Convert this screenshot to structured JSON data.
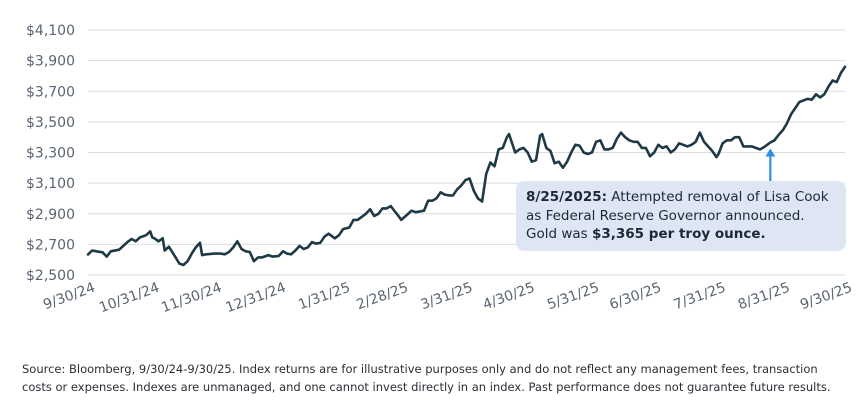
{
  "chart_data": {
    "type": "line",
    "y_axis": {
      "min": 2500,
      "max": 4100,
      "ticks": [
        2500,
        2700,
        2900,
        3100,
        3300,
        3500,
        3700,
        3900,
        4100
      ],
      "tick_labels": [
        "$2,500",
        "$2,700",
        "$2,900",
        "$3,100",
        "$3,300",
        "$3,500",
        "$3,700",
        "$3,900",
        "$4,100"
      ]
    },
    "x_axis": {
      "start": "2024-09-30",
      "end": "2025-09-30",
      "ticks": [
        "2024-09-30",
        "2024-10-31",
        "2024-11-30",
        "2024-12-31",
        "2025-01-31",
        "2025-02-28",
        "2025-03-31",
        "2025-04-30",
        "2025-05-31",
        "2025-06-30",
        "2025-07-31",
        "2025-08-31",
        "2025-09-30"
      ],
      "tick_labels": [
        "9/30/24",
        "10/31/24",
        "11/30/24",
        "12/31/24",
        "1/31/25",
        "2/28/25",
        "3/31/25",
        "4/30/25",
        "5/31/25",
        "6/30/25",
        "7/31/25",
        "8/31/25",
        "9/30/25"
      ]
    },
    "grid": true,
    "line_color": "#1f3a45",
    "series": [
      {
        "points": [
          [
            "2024-09-30",
            2634
          ],
          [
            "2024-10-02",
            2660
          ],
          [
            "2024-10-04",
            2655
          ],
          [
            "2024-10-07",
            2648
          ],
          [
            "2024-10-09",
            2620
          ],
          [
            "2024-10-11",
            2655
          ],
          [
            "2024-10-15",
            2665
          ],
          [
            "2024-10-17",
            2690
          ],
          [
            "2024-10-19",
            2715
          ],
          [
            "2024-10-21",
            2735
          ],
          [
            "2024-10-23",
            2720
          ],
          [
            "2024-10-25",
            2745
          ],
          [
            "2024-10-28",
            2760
          ],
          [
            "2024-10-30",
            2785
          ],
          [
            "2024-10-31",
            2745
          ],
          [
            "2024-11-01",
            2740
          ],
          [
            "2024-11-03",
            2720
          ],
          [
            "2024-11-05",
            2740
          ],
          [
            "2024-11-06",
            2660
          ],
          [
            "2024-11-08",
            2685
          ],
          [
            "2024-11-11",
            2620
          ],
          [
            "2024-11-13",
            2575
          ],
          [
            "2024-11-15",
            2565
          ],
          [
            "2024-11-17",
            2590
          ],
          [
            "2024-11-19",
            2640
          ],
          [
            "2024-11-21",
            2680
          ],
          [
            "2024-11-23",
            2710
          ],
          [
            "2024-11-24",
            2630
          ],
          [
            "2024-11-26",
            2635
          ],
          [
            "2024-11-30",
            2640
          ],
          [
            "2024-12-03",
            2640
          ],
          [
            "2024-12-05",
            2635
          ],
          [
            "2024-12-07",
            2650
          ],
          [
            "2024-12-09",
            2680
          ],
          [
            "2024-12-11",
            2720
          ],
          [
            "2024-12-13",
            2670
          ],
          [
            "2024-12-15",
            2655
          ],
          [
            "2024-12-17",
            2650
          ],
          [
            "2024-12-19",
            2590
          ],
          [
            "2024-12-21",
            2615
          ],
          [
            "2024-12-23",
            2615
          ],
          [
            "2024-12-26",
            2630
          ],
          [
            "2024-12-28",
            2620
          ],
          [
            "2024-12-31",
            2625
          ],
          [
            "2025-01-02",
            2655
          ],
          [
            "2025-01-04",
            2640
          ],
          [
            "2025-01-06",
            2635
          ],
          [
            "2025-01-08",
            2660
          ],
          [
            "2025-01-10",
            2690
          ],
          [
            "2025-01-12",
            2670
          ],
          [
            "2025-01-14",
            2680
          ],
          [
            "2025-01-16",
            2715
          ],
          [
            "2025-01-18",
            2705
          ],
          [
            "2025-01-20",
            2710
          ],
          [
            "2025-01-22",
            2750
          ],
          [
            "2025-01-24",
            2770
          ],
          [
            "2025-01-27",
            2740
          ],
          [
            "2025-01-29",
            2760
          ],
          [
            "2025-01-31",
            2800
          ],
          [
            "2025-02-03",
            2810
          ],
          [
            "2025-02-05",
            2860
          ],
          [
            "2025-02-07",
            2860
          ],
          [
            "2025-02-09",
            2880
          ],
          [
            "2025-02-11",
            2900
          ],
          [
            "2025-02-13",
            2930
          ],
          [
            "2025-02-15",
            2885
          ],
          [
            "2025-02-17",
            2900
          ],
          [
            "2025-02-19",
            2935
          ],
          [
            "2025-02-21",
            2935
          ],
          [
            "2025-02-23",
            2950
          ],
          [
            "2025-02-25",
            2915
          ],
          [
            "2025-02-27",
            2880
          ],
          [
            "2025-02-28",
            2860
          ],
          [
            "2025-03-03",
            2895
          ],
          [
            "2025-03-05",
            2920
          ],
          [
            "2025-03-07",
            2910
          ],
          [
            "2025-03-09",
            2915
          ],
          [
            "2025-03-11",
            2920
          ],
          [
            "2025-03-13",
            2985
          ],
          [
            "2025-03-15",
            2985
          ],
          [
            "2025-03-17",
            3000
          ],
          [
            "2025-03-19",
            3040
          ],
          [
            "2025-03-21",
            3025
          ],
          [
            "2025-03-23",
            3020
          ],
          [
            "2025-03-25",
            3020
          ],
          [
            "2025-03-27",
            3060
          ],
          [
            "2025-03-29",
            3085
          ],
          [
            "2025-03-31",
            3120
          ],
          [
            "2025-04-02",
            3130
          ],
          [
            "2025-04-04",
            3050
          ],
          [
            "2025-04-06",
            3000
          ],
          [
            "2025-04-08",
            2980
          ],
          [
            "2025-04-10",
            3160
          ],
          [
            "2025-04-12",
            3235
          ],
          [
            "2025-04-14",
            3210
          ],
          [
            "2025-04-16",
            3320
          ],
          [
            "2025-04-18",
            3330
          ],
          [
            "2025-04-20",
            3400
          ],
          [
            "2025-04-21",
            3420
          ],
          [
            "2025-04-22",
            3380
          ],
          [
            "2025-04-24",
            3300
          ],
          [
            "2025-04-26",
            3320
          ],
          [
            "2025-04-28",
            3330
          ],
          [
            "2025-04-30",
            3300
          ],
          [
            "2025-05-02",
            3240
          ],
          [
            "2025-05-04",
            3250
          ],
          [
            "2025-05-06",
            3410
          ],
          [
            "2025-05-07",
            3420
          ],
          [
            "2025-05-09",
            3330
          ],
          [
            "2025-05-11",
            3310
          ],
          [
            "2025-05-13",
            3230
          ],
          [
            "2025-05-15",
            3240
          ],
          [
            "2025-05-17",
            3200
          ],
          [
            "2025-05-19",
            3240
          ],
          [
            "2025-05-21",
            3300
          ],
          [
            "2025-05-23",
            3350
          ],
          [
            "2025-05-25",
            3345
          ],
          [
            "2025-05-27",
            3300
          ],
          [
            "2025-05-29",
            3290
          ],
          [
            "2025-05-31",
            3300
          ],
          [
            "2025-06-02",
            3370
          ],
          [
            "2025-06-04",
            3380
          ],
          [
            "2025-06-06",
            3320
          ],
          [
            "2025-06-08",
            3320
          ],
          [
            "2025-06-10",
            3330
          ],
          [
            "2025-06-12",
            3390
          ],
          [
            "2025-06-14",
            3430
          ],
          [
            "2025-06-16",
            3400
          ],
          [
            "2025-06-18",
            3380
          ],
          [
            "2025-06-20",
            3370
          ],
          [
            "2025-06-22",
            3370
          ],
          [
            "2025-06-24",
            3330
          ],
          [
            "2025-06-26",
            3330
          ],
          [
            "2025-06-28",
            3275
          ],
          [
            "2025-06-30",
            3300
          ],
          [
            "2025-07-02",
            3350
          ],
          [
            "2025-07-04",
            3330
          ],
          [
            "2025-07-06",
            3340
          ],
          [
            "2025-07-08",
            3300
          ],
          [
            "2025-07-10",
            3320
          ],
          [
            "2025-07-12",
            3360
          ],
          [
            "2025-07-14",
            3350
          ],
          [
            "2025-07-16",
            3340
          ],
          [
            "2025-07-18",
            3350
          ],
          [
            "2025-07-20",
            3370
          ],
          [
            "2025-07-22",
            3430
          ],
          [
            "2025-07-24",
            3370
          ],
          [
            "2025-07-26",
            3340
          ],
          [
            "2025-07-28",
            3310
          ],
          [
            "2025-07-30",
            3270
          ],
          [
            "2025-07-31",
            3290
          ],
          [
            "2025-08-02",
            3360
          ],
          [
            "2025-08-04",
            3380
          ],
          [
            "2025-08-06",
            3380
          ],
          [
            "2025-08-08",
            3400
          ],
          [
            "2025-08-10",
            3400
          ],
          [
            "2025-08-12",
            3340
          ],
          [
            "2025-08-14",
            3340
          ],
          [
            "2025-08-16",
            3340
          ],
          [
            "2025-08-18",
            3330
          ],
          [
            "2025-08-20",
            3320
          ],
          [
            "2025-08-22",
            3335
          ],
          [
            "2025-08-25",
            3365
          ],
          [
            "2025-08-27",
            3380
          ],
          [
            "2025-08-29",
            3415
          ],
          [
            "2025-08-31",
            3445
          ],
          [
            "2025-09-02",
            3490
          ],
          [
            "2025-09-04",
            3550
          ],
          [
            "2025-09-06",
            3590
          ],
          [
            "2025-09-08",
            3630
          ],
          [
            "2025-09-10",
            3640
          ],
          [
            "2025-09-12",
            3650
          ],
          [
            "2025-09-14",
            3645
          ],
          [
            "2025-09-16",
            3680
          ],
          [
            "2025-09-18",
            3660
          ],
          [
            "2025-09-20",
            3680
          ],
          [
            "2025-09-22",
            3730
          ],
          [
            "2025-09-24",
            3770
          ],
          [
            "2025-09-26",
            3760
          ],
          [
            "2025-09-28",
            3820
          ],
          [
            "2025-09-30",
            3860
          ]
        ]
      }
    ],
    "annotation": {
      "date": "2025-08-25",
      "value": 3365,
      "bold_lead": "8/25/2025:",
      "text_1": " Attempted removal of Lisa Cook",
      "text_2": "as Federal Reserve Governor announced.",
      "text_3_pre": "Gold was ",
      "text_3_bold": "$3,365 per troy ounce.",
      "color": "#2f8fe0",
      "box_color": "#dde6f2"
    }
  },
  "footnote": {
    "line_1": "Source: Bloomberg, 9/30/24-9/30/25. Index returns are for illustrative purposes only and do not reflect any management fees, transaction",
    "line_2": "costs or expenses. Indexes are unmanaged, and one cannot invest directly in an index. Past performance does not guarantee future results."
  }
}
